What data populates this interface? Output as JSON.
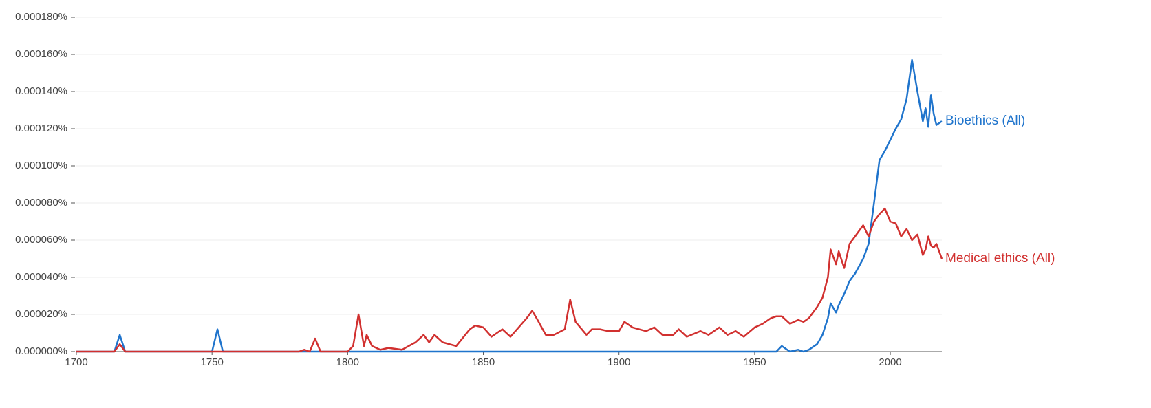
{
  "chart_data": {
    "type": "line",
    "x": [
      1700,
      1714,
      1716,
      1718,
      1750,
      1752,
      1754,
      1782,
      1784,
      1786,
      1788,
      1790,
      1800,
      1802,
      1804,
      1806,
      1807,
      1809,
      1812,
      1815,
      1820,
      1825,
      1828,
      1830,
      1832,
      1835,
      1840,
      1845,
      1847,
      1850,
      1853,
      1857,
      1860,
      1863,
      1866,
      1868,
      1870,
      1873,
      1876,
      1880,
      1882,
      1884,
      1888,
      1890,
      1893,
      1896,
      1900,
      1902,
      1905,
      1910,
      1913,
      1916,
      1920,
      1922,
      1925,
      1930,
      1933,
      1937,
      1940,
      1943,
      1946,
      1950,
      1953,
      1956,
      1958,
      1960,
      1963,
      1966,
      1968,
      1970,
      1973,
      1975,
      1977,
      1978,
      1980,
      1981,
      1983,
      1985,
      1987,
      1990,
      1992,
      1994,
      1996,
      1998,
      2000,
      2002,
      2004,
      2006,
      2008,
      2010,
      2012,
      2013,
      2014,
      2015,
      2016,
      2017,
      2019
    ],
    "series": [
      {
        "name": "Bioethics (All)",
        "color": "#1f74cc",
        "values": [
          0,
          0,
          9e-06,
          0,
          0,
          1.2e-05,
          0,
          0,
          0,
          0,
          0,
          0,
          0,
          0,
          0,
          0,
          0,
          0,
          0,
          0,
          0,
          0,
          0,
          0,
          0,
          0,
          0,
          0,
          0,
          0,
          0,
          0,
          0,
          0,
          0,
          0,
          0,
          0,
          0,
          0,
          0,
          0,
          0,
          0,
          0,
          0,
          0,
          0,
          0,
          0,
          0,
          0,
          0,
          0,
          0,
          0,
          0,
          0,
          0,
          0,
          0,
          0,
          0,
          0,
          0,
          3e-06,
          0,
          1e-06,
          0,
          1e-06,
          4e-06,
          9e-06,
          1.8e-05,
          2.6e-05,
          2.1e-05,
          2.5e-05,
          3.1e-05,
          3.8e-05,
          4.2e-05,
          5e-05,
          5.8e-05,
          8e-05,
          0.000103,
          0.000108,
          0.000114,
          0.00012,
          0.000125,
          0.000136,
          0.000157,
          0.00014,
          0.000124,
          0.000131,
          0.000121,
          0.000138,
          0.000128,
          0.000122,
          0.000124
        ]
      },
      {
        "name": "Medical ethics (All)",
        "color": "#d1302f",
        "values": [
          0,
          0,
          4e-06,
          0,
          0,
          0,
          0,
          0,
          1e-06,
          0,
          7e-06,
          0,
          0,
          3e-06,
          2e-05,
          3e-06,
          9e-06,
          3e-06,
          1e-06,
          2e-06,
          1e-06,
          5e-06,
          9e-06,
          5e-06,
          9e-06,
          5e-06,
          3e-06,
          1.2e-05,
          1.4e-05,
          1.3e-05,
          8e-06,
          1.2e-05,
          8e-06,
          1.3e-05,
          1.8e-05,
          2.2e-05,
          1.7e-05,
          9e-06,
          9e-06,
          1.2e-05,
          2.8e-05,
          1.6e-05,
          9e-06,
          1.2e-05,
          1.2e-05,
          1.1e-05,
          1.1e-05,
          1.6e-05,
          1.3e-05,
          1.1e-05,
          1.3e-05,
          9e-06,
          9e-06,
          1.2e-05,
          8e-06,
          1.1e-05,
          9e-06,
          1.3e-05,
          9e-06,
          1.1e-05,
          8e-06,
          1.3e-05,
          1.5e-05,
          1.8e-05,
          1.9e-05,
          1.9e-05,
          1.5e-05,
          1.7e-05,
          1.6e-05,
          1.8e-05,
          2.4e-05,
          2.9e-05,
          4e-05,
          5.5e-05,
          4.7e-05,
          5.4e-05,
          4.5e-05,
          5.8e-05,
          6.2e-05,
          6.8e-05,
          6.2e-05,
          7e-05,
          7.4e-05,
          7.7e-05,
          7e-05,
          6.9e-05,
          6.2e-05,
          6.6e-05,
          6e-05,
          6.3e-05,
          5.2e-05,
          5.5e-05,
          6.2e-05,
          5.7e-05,
          5.6e-05,
          5.8e-05,
          5e-05
        ]
      }
    ],
    "xlim": [
      1700,
      2019
    ],
    "xticks": [
      1700,
      1750,
      1800,
      1850,
      1900,
      1950,
      2000
    ],
    "ylim": [
      0,
      0.00018
    ],
    "yticks": [
      {
        "value": 0,
        "label": "0.000000%"
      },
      {
        "value": 2e-05,
        "label": "0.000020%"
      },
      {
        "value": 4e-05,
        "label": "0.000040%"
      },
      {
        "value": 6e-05,
        "label": "0.000060%"
      },
      {
        "value": 8e-05,
        "label": "0.000080%"
      },
      {
        "value": 0.0001,
        "label": "0.000100%"
      },
      {
        "value": 0.00012,
        "label": "0.000120%"
      },
      {
        "value": 0.00014,
        "label": "0.000140%"
      },
      {
        "value": 0.00016,
        "label": "0.000160%"
      },
      {
        "value": 0.00018,
        "label": "0.000180%"
      }
    ],
    "grid": true
  }
}
